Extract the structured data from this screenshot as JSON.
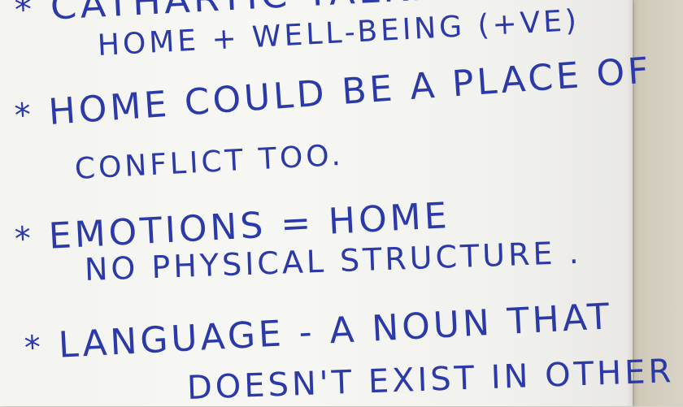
{
  "notes": {
    "bullet": "*",
    "lines": [
      "CATHARTIC TALKING",
      "HOME + WELL-BEING (+VE)",
      "HOME COULD BE A PLACE OF",
      "CONFLICT TOO.",
      "EMOTIONS = HOME",
      "NO PHYSICAL STRUCTURE .",
      "LANGUAGE - A NOUN THAT",
      "DOESN'T EXIST IN OTHER"
    ]
  },
  "colors": {
    "ink": "#2b3aa8",
    "paper": "#f5f5f2",
    "wall": "#d8d6cf"
  }
}
